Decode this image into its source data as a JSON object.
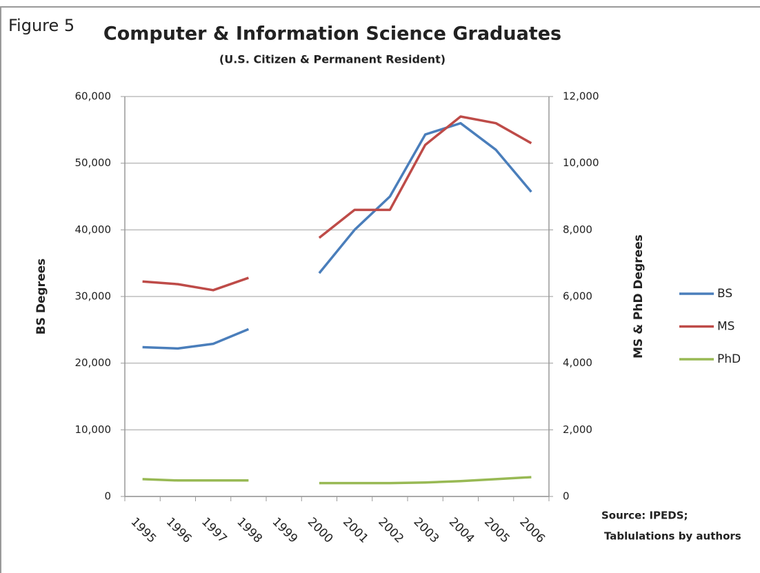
{
  "chart_data": {
    "type": "line",
    "figure_label": "Figure 5",
    "title": "Computer & Information Science Graduates",
    "subtitle": "(U.S. Citizen & Permanent Resident)",
    "ylabel": "BS Degrees",
    "y2label": "MS & PhD Degrees",
    "source": [
      "Source: IPEDS;",
      "Tablulations by authors"
    ],
    "categories": [
      "1995",
      "1996",
      "1997",
      "1998",
      "1999",
      "2000",
      "2001",
      "2002",
      "2003",
      "2004",
      "2005",
      "2006"
    ],
    "series": [
      {
        "name": "BS",
        "color": "#4a7ebb",
        "axis": "y",
        "values": [
          22400,
          22200,
          22900,
          25100,
          null,
          33500,
          40000,
          45000,
          54300,
          56000,
          52000,
          45700
        ]
      },
      {
        "name": "MS",
        "color": "#be4b48",
        "axis": "y2",
        "values": [
          6450,
          6370,
          6190,
          6560,
          null,
          7760,
          8600,
          8600,
          10550,
          11400,
          11200,
          10600
        ]
      },
      {
        "name": "PhD",
        "color": "#98b954",
        "axis": "y2",
        "values": [
          520,
          480,
          480,
          480,
          null,
          400,
          400,
          400,
          420,
          460,
          520,
          580
        ]
      }
    ],
    "ylim": [
      0,
      60000
    ],
    "yticks": [
      0,
      {
        "value": 10000,
        "label": "10,000"
      },
      {
        "value": 20000,
        "label": "20,000"
      },
      {
        "value": 30000,
        "label": "30,000"
      },
      {
        "value": 40000,
        "label": "40,000"
      },
      {
        "value": 50000,
        "label": "50,000"
      },
      {
        "value": 60000,
        "label": "60,000"
      }
    ],
    "y2lim": [
      0,
      12000
    ],
    "y2ticks": [
      0,
      {
        "value": 2000,
        "label": "2,000"
      },
      {
        "value": 4000,
        "label": "4,000"
      },
      {
        "value": 6000,
        "label": "6,000"
      },
      {
        "value": 8000,
        "label": "8,000"
      },
      {
        "value": 10000,
        "label": "10,000"
      },
      {
        "value": 12000,
        "label": "12,000"
      }
    ],
    "grid": true,
    "legend": "right"
  }
}
